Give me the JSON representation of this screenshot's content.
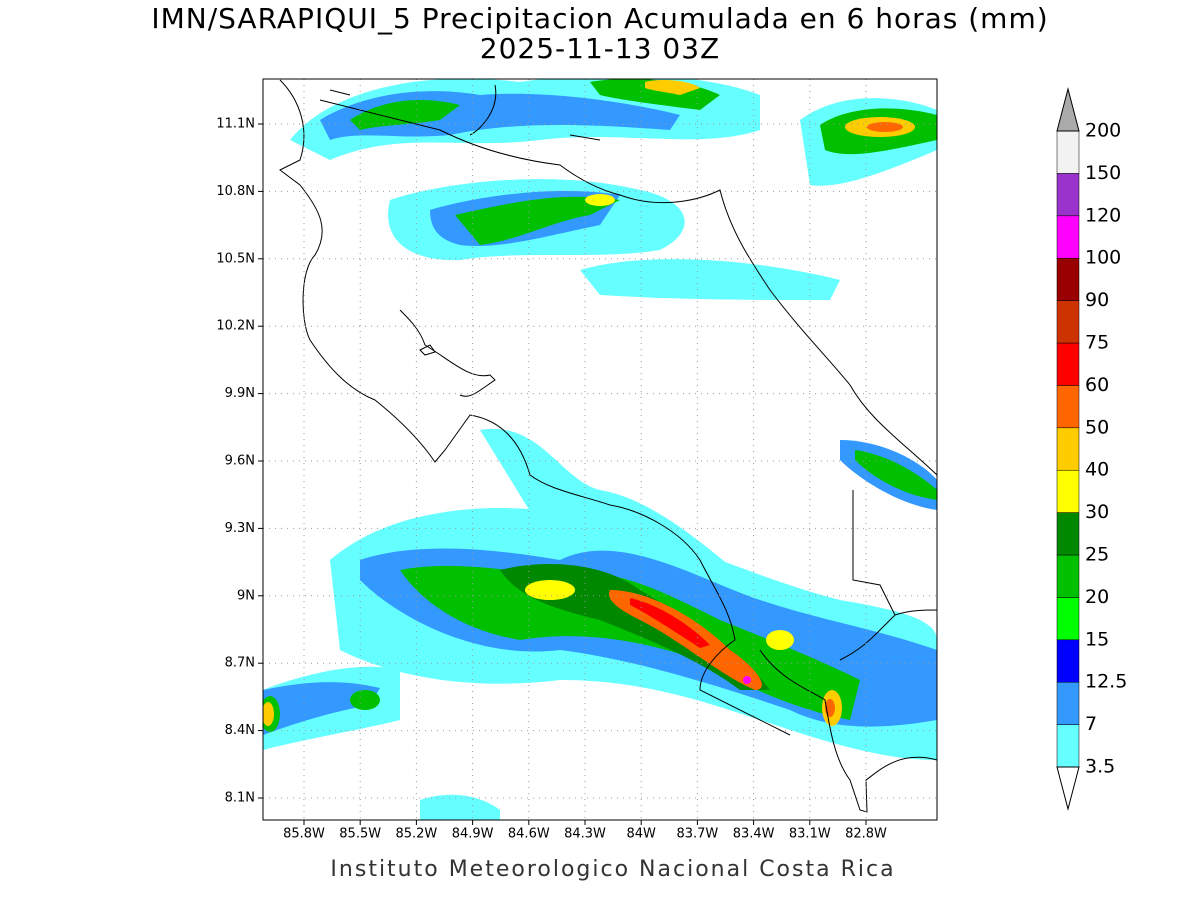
{
  "title": "IMN/SARAPIQUI_5 Precipitacion Acumulada en 6 horas (mm)",
  "subtitle": "2025-11-13 03Z",
  "map": {
    "lat_labels": [
      "11.1N",
      "10.8N",
      "10.5N",
      "10.2N",
      "9.9N",
      "9.6N",
      "9.3N",
      "9N",
      "8.7N",
      "8.4N",
      "8.1N"
    ],
    "lon_labels": [
      "85.8W",
      "85.5W",
      "85.2W",
      "84.9W",
      "84.6W",
      "84.3W",
      "84W",
      "83.7W",
      "83.4W",
      "83.1W",
      "82.8W"
    ]
  },
  "colorbar": {
    "levels": [
      3.5,
      7,
      12.5,
      15,
      20,
      25,
      30,
      40,
      50,
      60,
      75,
      90,
      100,
      120,
      150,
      200
    ],
    "colors": [
      "#66ffff",
      "#3399ff",
      "#0000ff",
      "#00ff00",
      "#00c000",
      "#008800",
      "#ffff00",
      "#ffcc00",
      "#ff6600",
      "#ff0000",
      "#cc3300",
      "#990000",
      "#ff00ff",
      "#9933cc",
      "#f2f2f2"
    ]
  },
  "footer": "Instituto Meteorologico Nacional Costa Rica"
}
